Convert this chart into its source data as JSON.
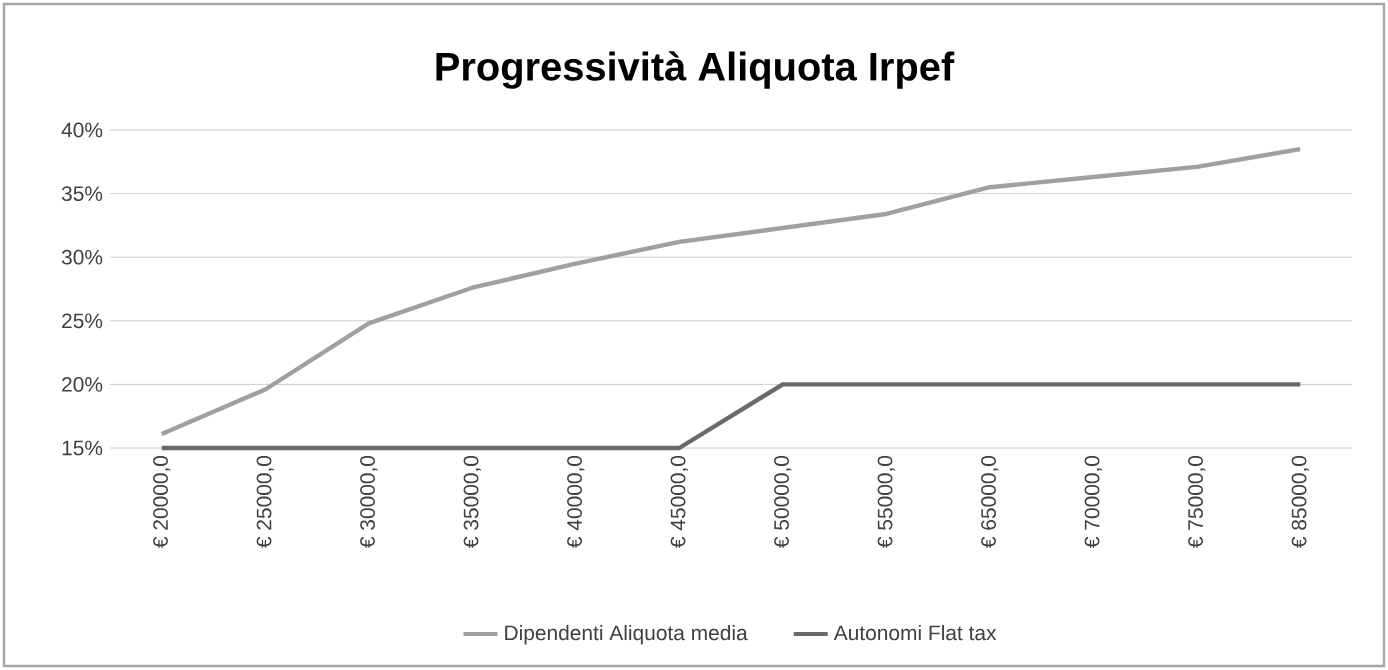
{
  "chart_data": {
    "type": "line",
    "title": "Progressività Aliquota Irpef",
    "categories": [
      "€ 20000,0",
      "€ 25000,0",
      "€ 30000,0",
      "€ 35000,0",
      "€ 40000,0",
      "€ 45000,0",
      "€ 50000,0",
      "€ 55000,0",
      "€ 65000,0",
      "€ 70000,0",
      "€ 75000,0",
      "€ 85000,0"
    ],
    "series": [
      {
        "name": "Dipendenti Aliquota media",
        "color": "#a0a0a0",
        "values": [
          16.1,
          19.6,
          24.8,
          27.6,
          29.5,
          31.2,
          32.3,
          33.4,
          35.5,
          36.3,
          37.1,
          38.5
        ]
      },
      {
        "name": "Autonomi Flat tax",
        "color": "#6a6a6a",
        "values": [
          15,
          15,
          15,
          15,
          15,
          15,
          20,
          20,
          20,
          20,
          20,
          20
        ]
      }
    ],
    "ylim": [
      15,
      40
    ],
    "yticks": [
      {
        "value": 15,
        "label": "15%"
      },
      {
        "value": 20,
        "label": "20%"
      },
      {
        "value": 25,
        "label": "25%"
      },
      {
        "value": 30,
        "label": "30%"
      },
      {
        "value": 35,
        "label": "35%"
      },
      {
        "value": 40,
        "label": "40%"
      }
    ],
    "grid": "y",
    "legend": "bottom",
    "marker": "none",
    "line_style": "solid"
  }
}
